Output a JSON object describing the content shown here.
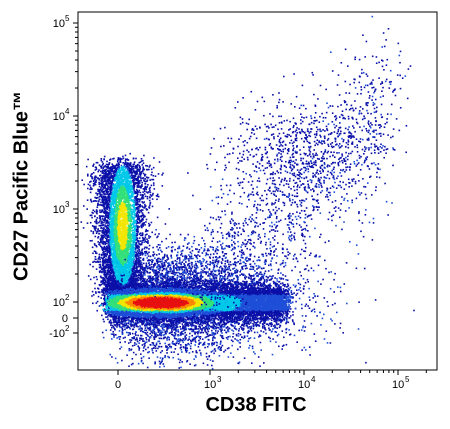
{
  "chart_data": {
    "type": "scatter",
    "subtype": "flow-cytometry-density-dot-plot",
    "title": "",
    "xlabel": "CD38 FITC",
    "ylabel": "CD27 Pacific Blue™",
    "x_scale": "biexponential",
    "y_scale": "biexponential",
    "x_ticks": [
      {
        "value": 0,
        "base": "0",
        "exp": ""
      },
      {
        "value": 1000,
        "base": "10",
        "exp": "3"
      },
      {
        "value": 10000,
        "base": "10",
        "exp": "4"
      },
      {
        "value": 100000,
        "base": "10",
        "exp": "5"
      }
    ],
    "y_ticks": [
      {
        "value": -100,
        "base": "-10",
        "exp": "2"
      },
      {
        "value": 0,
        "base": "0",
        "exp": ""
      },
      {
        "value": 100,
        "base": "10",
        "exp": "2"
      },
      {
        "value": 1000,
        "base": "10",
        "exp": "3"
      },
      {
        "value": 10000,
        "base": "10",
        "exp": "4"
      },
      {
        "value": 100000,
        "base": "10",
        "exp": "5"
      }
    ],
    "grid": false,
    "legend": "none",
    "density_colors": [
      "#0a10a8",
      "#1e4fd8",
      "#00c8e8",
      "#33e07a",
      "#f2e600",
      "#ff8800",
      "#e81010"
    ],
    "populations": [
      {
        "name": "",
        "x_center": 0,
        "y_center": 1000,
        "spread": "vertical"
      },
      {
        "name": "",
        "x_center": 300,
        "y_center": 100,
        "spread": "horizontal",
        "density": "highest"
      },
      {
        "name": "",
        "x_center": 15000,
        "y_center": 5000,
        "spread": "diffuse"
      }
    ]
  }
}
